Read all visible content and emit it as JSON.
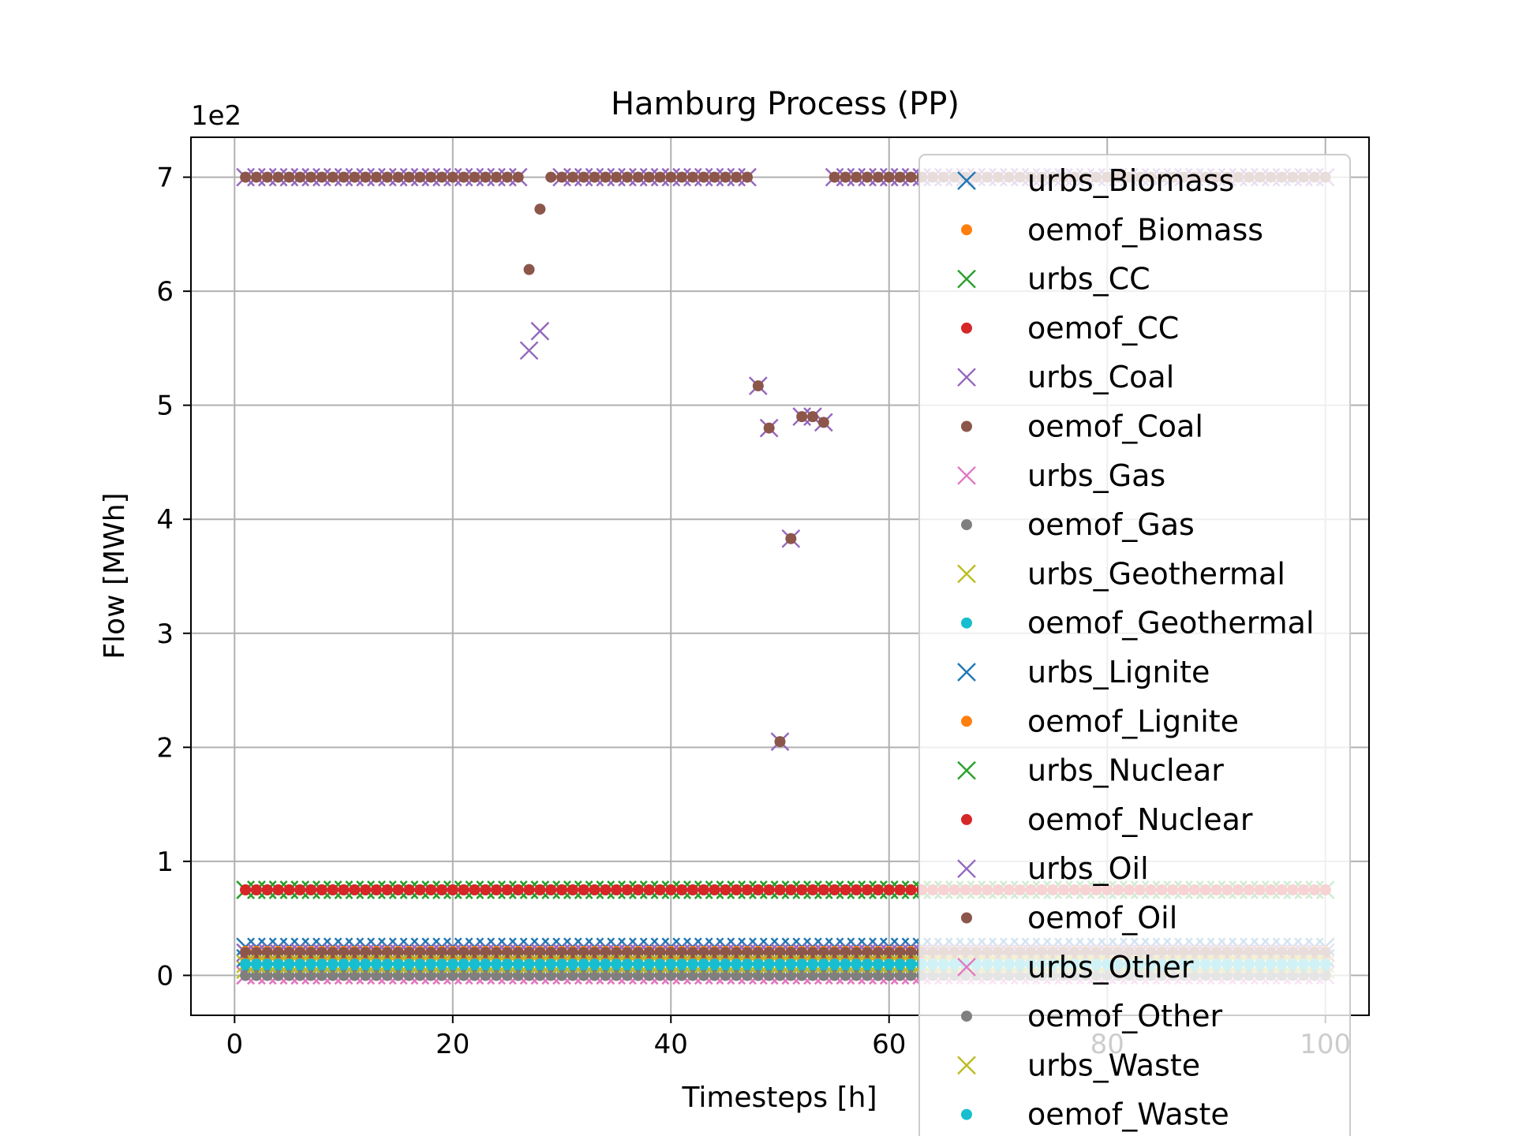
{
  "chart_data": {
    "type": "scatter",
    "title": "Hamburg Process (PP)",
    "xlabel": "Timesteps [h]",
    "ylabel": "Flow [MWh]",
    "y_multiplier": "1e2",
    "xlim": [
      -4,
      104
    ],
    "ylim": [
      -0.35,
      7.35
    ],
    "x_ticks": [
      0,
      20,
      40,
      60,
      80,
      100
    ],
    "y_ticks": [
      0,
      1,
      2,
      3,
      4,
      5,
      6,
      7
    ],
    "grid": true,
    "legend_position": "right",
    "x_start": 1,
    "x_end": 100,
    "colors": {
      "blue": "#1f77b4",
      "orange": "#ff7f0e",
      "green": "#2ca02c",
      "red": "#d62728",
      "purple": "#9467bd",
      "brown": "#8c564b",
      "pink": "#e377c2",
      "gray": "#7f7f7f",
      "olive": "#bcbd22",
      "cyan": "#17becf"
    },
    "series": [
      {
        "name": "urbs_Biomass",
        "marker": "x",
        "color": "#1f77b4",
        "constant": 0.25
      },
      {
        "name": "oemof_Biomass",
        "marker": "dot",
        "color": "#ff7f0e",
        "constant": 0.21
      },
      {
        "name": "urbs_CC",
        "marker": "x",
        "color": "#2ca02c",
        "constant": 0.75
      },
      {
        "name": "oemof_CC",
        "marker": "dot",
        "color": "#d62728",
        "constant": 0.75
      },
      {
        "name": "urbs_Coal",
        "marker": "x",
        "color": "#9467bd",
        "constant": 7.0,
        "overrides": [
          [
            27,
            5.48
          ],
          [
            28,
            5.65
          ],
          [
            48,
            5.17
          ],
          [
            49,
            4.8
          ],
          [
            50,
            2.05
          ],
          [
            51,
            3.83
          ],
          [
            52,
            4.9
          ],
          [
            53,
            4.9
          ],
          [
            54,
            4.85
          ]
        ],
        "gaps": [
          [
            29,
            29
          ],
          [
            48.5,
            54.5
          ]
        ]
      },
      {
        "name": "oemof_Coal",
        "marker": "dot",
        "color": "#8c564b",
        "constant": 7.0,
        "overrides": [
          [
            27,
            6.19
          ],
          [
            28,
            6.72
          ],
          [
            48,
            5.17
          ],
          [
            49,
            4.8
          ],
          [
            50,
            2.05
          ],
          [
            51,
            3.83
          ],
          [
            52,
            4.9
          ],
          [
            53,
            4.9
          ],
          [
            54,
            4.85
          ]
        ],
        "gaps": [
          [
            48.5,
            54.5
          ]
        ]
      },
      {
        "name": "urbs_Gas",
        "marker": "x",
        "color": "#e377c2",
        "constant": 0.0
      },
      {
        "name": "oemof_Gas",
        "marker": "dot",
        "color": "#7f7f7f",
        "constant": 0.0
      },
      {
        "name": "urbs_Geothermal",
        "marker": "x",
        "color": "#bcbd22",
        "constant": 0.05
      },
      {
        "name": "oemof_Geothermal",
        "marker": "dot",
        "color": "#17becf",
        "constant": 0.05
      },
      {
        "name": "urbs_Lignite",
        "marker": "x",
        "color": "#1f77b4",
        "constant": 0.15
      },
      {
        "name": "oemof_Lignite",
        "marker": "dot",
        "color": "#ff7f0e",
        "constant": 0.15
      },
      {
        "name": "urbs_Nuclear",
        "marker": "x",
        "color": "#2ca02c",
        "constant": 0.75
      },
      {
        "name": "oemof_Nuclear",
        "marker": "dot",
        "color": "#d62728",
        "constant": 0.75
      },
      {
        "name": "urbs_Oil",
        "marker": "x",
        "color": "#9467bd",
        "constant": 0.2
      },
      {
        "name": "oemof_Oil",
        "marker": "dot",
        "color": "#8c564b",
        "constant": 0.2
      },
      {
        "name": "urbs_Other",
        "marker": "x",
        "color": "#e377c2",
        "constant": 0.0
      },
      {
        "name": "oemof_Other",
        "marker": "dot",
        "color": "#7f7f7f",
        "constant": 0.0
      },
      {
        "name": "urbs_Waste",
        "marker": "x",
        "color": "#bcbd22",
        "constant": 0.1
      },
      {
        "name": "oemof_Waste",
        "marker": "dot",
        "color": "#17becf",
        "constant": 0.1
      }
    ]
  }
}
